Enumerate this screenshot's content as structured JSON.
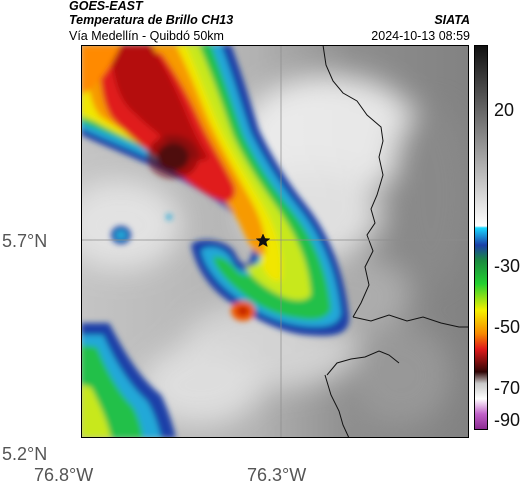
{
  "header": {
    "source": "GOES-EAST",
    "product": "Temperatura de Brillo CH13",
    "region": "Vía Medellín - Quibdó 50km",
    "org": "SIATA",
    "datetime": "2024-10-13 08:59"
  },
  "axes": {
    "y_ticks": [
      "5.7°N",
      "5.2°N"
    ],
    "x_ticks": [
      "76.8°W",
      "76.3°W"
    ]
  },
  "colorbar": {
    "ticks": [
      "20",
      "-30",
      "-50",
      "-70",
      "-90"
    ]
  },
  "marker": {
    "icon": "star-icon"
  }
}
